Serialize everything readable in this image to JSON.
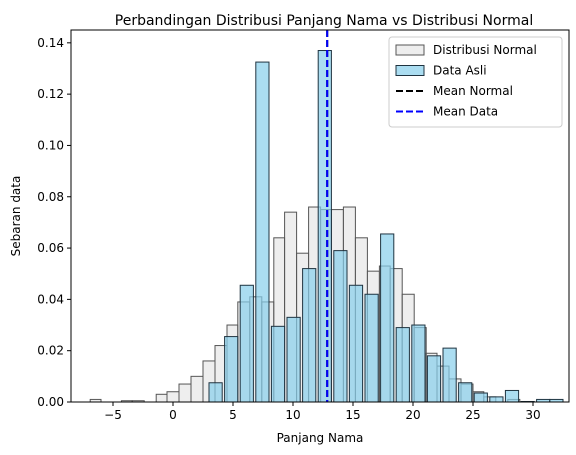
{
  "chart_data": {
    "type": "bar",
    "title": "Perbandingan Distribusi Panjang Nama vs Distribusi Normal",
    "xlabel": "Panjang Nama",
    "ylabel": "Sebaran data",
    "xlim": [
      -8.5,
      33.0
    ],
    "ylim": [
      0,
      0.145
    ],
    "x_ticks": [
      -5,
      0,
      5,
      10,
      15,
      20,
      25,
      30
    ],
    "y_ticks": [
      0.0,
      0.02,
      0.04,
      0.06,
      0.08,
      0.1,
      0.12,
      0.14
    ],
    "y_tick_labels": [
      "0.00",
      "0.02",
      "0.04",
      "0.06",
      "0.08",
      "0.10",
      "0.12",
      "0.14"
    ],
    "legend_position": "top-right",
    "legend": [
      {
        "label": "Distribusi Normal",
        "kind": "patch",
        "color": "#d9d9d9"
      },
      {
        "label": "Data Asli",
        "kind": "patch",
        "color": "#87ceeb"
      },
      {
        "label": "Mean Normal",
        "kind": "dashed-line",
        "color": "#000000"
      },
      {
        "label": "Mean Data",
        "kind": "dashed-line",
        "color": "#0000ff"
      }
    ],
    "series": [
      {
        "name": "Distribusi Normal",
        "color": "#d9d9d9",
        "alpha": 0.45,
        "bins": [
          {
            "x0": -6.9,
            "x1": -6.0,
            "y": 0.001
          },
          {
            "x0": -4.3,
            "x1": -3.4,
            "y": 0.0005
          },
          {
            "x0": -3.4,
            "x1": -2.4,
            "y": 0.0005
          },
          {
            "x0": -1.4,
            "x1": -0.5,
            "y": 0.003
          },
          {
            "x0": -0.5,
            "x1": 0.5,
            "y": 0.004
          },
          {
            "x0": 0.5,
            "x1": 1.5,
            "y": 0.007
          },
          {
            "x0": 1.5,
            "x1": 2.5,
            "y": 0.01
          },
          {
            "x0": 2.5,
            "x1": 3.5,
            "y": 0.016
          },
          {
            "x0": 3.5,
            "x1": 4.5,
            "y": 0.022
          },
          {
            "x0": 4.5,
            "x1": 5.4,
            "y": 0.03
          },
          {
            "x0": 5.4,
            "x1": 6.4,
            "y": 0.039
          },
          {
            "x0": 6.4,
            "x1": 7.4,
            "y": 0.041
          },
          {
            "x0": 7.4,
            "x1": 8.4,
            "y": 0.039
          },
          {
            "x0": 8.4,
            "x1": 9.3,
            "y": 0.064
          },
          {
            "x0": 9.3,
            "x1": 10.3,
            "y": 0.074
          },
          {
            "x0": 10.3,
            "x1": 11.3,
            "y": 0.058
          },
          {
            "x0": 11.3,
            "x1": 12.3,
            "y": 0.076
          },
          {
            "x0": 12.3,
            "x1": 13.2,
            "y": 0.075
          },
          {
            "x0": 13.2,
            "x1": 14.2,
            "y": 0.075
          },
          {
            "x0": 14.2,
            "x1": 15.2,
            "y": 0.076
          },
          {
            "x0": 15.2,
            "x1": 16.2,
            "y": 0.064
          },
          {
            "x0": 16.2,
            "x1": 17.2,
            "y": 0.051
          },
          {
            "x0": 17.2,
            "x1": 18.1,
            "y": 0.053
          },
          {
            "x0": 18.1,
            "x1": 19.1,
            "y": 0.052
          },
          {
            "x0": 19.1,
            "x1": 20.1,
            "y": 0.042
          },
          {
            "x0": 20.1,
            "x1": 21.1,
            "y": 0.029
          },
          {
            "x0": 21.1,
            "x1": 22.0,
            "y": 0.019
          },
          {
            "x0": 22.0,
            "x1": 23.0,
            "y": 0.014
          },
          {
            "x0": 23.0,
            "x1": 24.0,
            "y": 0.009
          },
          {
            "x0": 24.0,
            "x1": 25.0,
            "y": 0.007
          },
          {
            "x0": 25.0,
            "x1": 25.9,
            "y": 0.004
          },
          {
            "x0": 25.9,
            "x1": 26.9,
            "y": 0.002
          },
          {
            "x0": 27.9,
            "x1": 28.9,
            "y": 0.001
          }
        ]
      },
      {
        "name": "Data Asli",
        "color": "#87ceeb",
        "alpha": 0.7,
        "bins": [
          {
            "x0": 3.0,
            "x1": 4.1,
            "y": 0.0075
          },
          {
            "x0": 4.3,
            "x1": 5.4,
            "y": 0.0255
          },
          {
            "x0": 5.6,
            "x1": 6.7,
            "y": 0.0455
          },
          {
            "x0": 6.9,
            "x1": 8.0,
            "y": 0.1325
          },
          {
            "x0": 8.2,
            "x1": 9.3,
            "y": 0.0295
          },
          {
            "x0": 9.5,
            "x1": 10.6,
            "y": 0.033
          },
          {
            "x0": 10.8,
            "x1": 11.9,
            "y": 0.052
          },
          {
            "x0": 12.1,
            "x1": 13.2,
            "y": 0.137
          },
          {
            "x0": 13.4,
            "x1": 14.5,
            "y": 0.059
          },
          {
            "x0": 14.7,
            "x1": 15.8,
            "y": 0.0455
          },
          {
            "x0": 16.0,
            "x1": 17.1,
            "y": 0.042
          },
          {
            "x0": 17.3,
            "x1": 18.4,
            "y": 0.0655
          },
          {
            "x0": 18.6,
            "x1": 19.7,
            "y": 0.029
          },
          {
            "x0": 19.9,
            "x1": 21.0,
            "y": 0.03
          },
          {
            "x0": 21.2,
            "x1": 22.3,
            "y": 0.018
          },
          {
            "x0": 22.5,
            "x1": 23.6,
            "y": 0.021
          },
          {
            "x0": 23.8,
            "x1": 24.9,
            "y": 0.0075
          },
          {
            "x0": 25.1,
            "x1": 26.2,
            "y": 0.0035
          },
          {
            "x0": 26.4,
            "x1": 27.5,
            "y": 0.002
          },
          {
            "x0": 27.7,
            "x1": 28.8,
            "y": 0.0045
          },
          {
            "x0": 29.0,
            "x1": 30.1,
            "y": 0.0002
          },
          {
            "x0": 30.3,
            "x1": 31.4,
            "y": 0.001
          },
          {
            "x0": 31.4,
            "x1": 32.5,
            "y": 0.001
          }
        ]
      }
    ],
    "reference_lines": [
      {
        "name": "Mean Normal",
        "x": 12.85,
        "color": "#000000",
        "style": "dashed"
      },
      {
        "name": "Mean Data",
        "x": 12.85,
        "color": "#0000ff",
        "style": "dashed"
      }
    ]
  }
}
